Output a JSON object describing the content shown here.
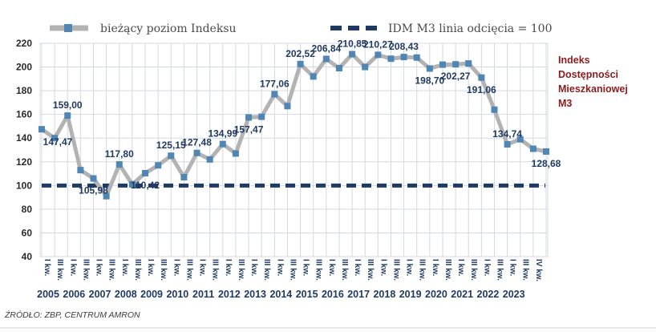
{
  "chart_data": {
    "type": "line",
    "legend": {
      "series_label": "bieżący poziom Indeksu",
      "cutoff_label": "IDM M3 linia odcięcia = 100",
      "placement": "top"
    },
    "side_title": [
      "Indeks",
      "Dostępności",
      "Mieszkaniowej",
      "M3"
    ],
    "source": "ŹRÓDŁO: ZBP, CENTRUM AMRON",
    "y_ticks": [
      "220",
      "200",
      "180",
      "160",
      "140",
      "120",
      "100",
      "80",
      "60",
      "40"
    ],
    "ylim": [
      40,
      220
    ],
    "grid": true,
    "cutoff_value": 100,
    "quarter_labels": [
      "I kw.",
      "III kw.",
      "I kw.",
      "III kw.",
      "I kw.",
      "III kw.",
      "I kw.",
      "III kw.",
      "I kw.",
      "III kw.",
      "I kw.",
      "III kw.",
      "I kw.",
      "III kw.",
      "I kw.",
      "III kw.",
      "I kw.",
      "III kw.",
      "I kw.",
      "III kw.",
      "I kw.",
      "III kw.",
      "I kw.",
      "III kw.",
      "I kw.",
      "III kw.",
      "I kw.",
      "III kw.",
      "I kw.",
      "III kw.",
      "I kw.",
      "III kw.",
      "I kw.",
      "III kw.",
      "I kw.",
      "III kw.",
      "I kw.",
      "III kw.",
      "IV kw."
    ],
    "years": [
      "2005",
      "2006",
      "2007",
      "2008",
      "2009",
      "2010",
      "2011",
      "2012",
      "2013",
      "2014",
      "2015",
      "2016",
      "2017",
      "2018",
      "2019",
      "2020",
      "2021",
      "2022",
      "2023"
    ],
    "highlight_year": "2023",
    "values": [
      147.47,
      140,
      159.0,
      113,
      105.98,
      91,
      117.8,
      101,
      110.42,
      117,
      125.15,
      107,
      127.48,
      122,
      134.99,
      127,
      157.47,
      158,
      177.06,
      167,
      202.52,
      192,
      206.84,
      199,
      210.85,
      200,
      210.27,
      207,
      208.43,
      208,
      198.7,
      202,
      202.27,
      203,
      191.06,
      164,
      134.74,
      139,
      131,
      128.68
    ],
    "data_labels": [
      {
        "index": 0,
        "text": "147,47"
      },
      {
        "index": 2,
        "text": "159,00"
      },
      {
        "index": 4,
        "text": "105,98"
      },
      {
        "index": 6,
        "text": "117,80"
      },
      {
        "index": 8,
        "text": "110,42"
      },
      {
        "index": 10,
        "text": "125,15"
      },
      {
        "index": 12,
        "text": "127,48"
      },
      {
        "index": 14,
        "text": "134,99"
      },
      {
        "index": 16,
        "text": "157,47"
      },
      {
        "index": 18,
        "text": "177,06"
      },
      {
        "index": 20,
        "text": "202,52"
      },
      {
        "index": 22,
        "text": "206,84"
      },
      {
        "index": 24,
        "text": "210,85"
      },
      {
        "index": 26,
        "text": "210,27"
      },
      {
        "index": 28,
        "text": "208,43"
      },
      {
        "index": 30,
        "text": "198,70"
      },
      {
        "index": 32,
        "text": "202,27"
      },
      {
        "index": 34,
        "text": "191,06"
      },
      {
        "index": 36,
        "text": "134,74"
      },
      {
        "index": 39,
        "text": "128,68"
      }
    ],
    "colors": {
      "line": "#b3b3b3",
      "marker": "#4f86b3",
      "cutoff": "#1f3a63",
      "grid": "#d3d9e0",
      "side_title": "#8b1c1c",
      "highlight_year": "#8b1c1c"
    }
  }
}
